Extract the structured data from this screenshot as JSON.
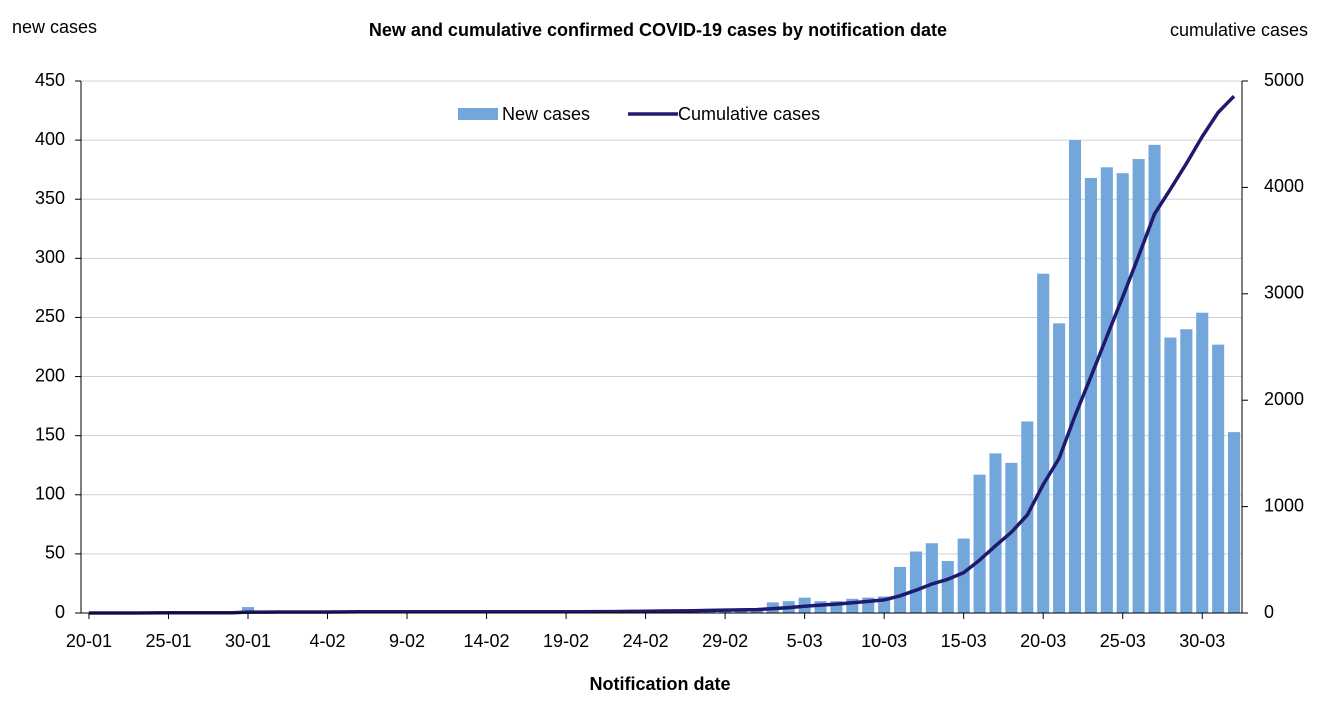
{
  "chart_data": {
    "type": "bar_line",
    "title": "New and cumulative confirmed COVID-19 cases by notification date",
    "y_label": "new cases",
    "y2_label": "cumulative cases",
    "x_label": "Notification date",
    "categories": [
      "20-01",
      null,
      null,
      null,
      null,
      "25-01",
      null,
      null,
      null,
      null,
      "30-01",
      null,
      null,
      null,
      null,
      "4-02",
      null,
      null,
      null,
      null,
      "9-02",
      null,
      null,
      null,
      null,
      "14-02",
      null,
      null,
      null,
      null,
      "19-02",
      null,
      null,
      null,
      null,
      "24-02",
      null,
      null,
      null,
      null,
      "29-02",
      null,
      null,
      null,
      null,
      "5-03",
      null,
      null,
      null,
      null,
      "10-03",
      null,
      null,
      null,
      null,
      "15-03",
      null,
      null,
      null,
      null,
      "20-03",
      null,
      null,
      null,
      null,
      "25-03",
      null,
      null,
      null,
      null,
      "30-03",
      null,
      null
    ],
    "series": [
      {
        "name": "New cases",
        "type": "bar",
        "color": "#73a6da",
        "values": [
          0,
          0,
          0,
          0,
          1,
          1,
          1,
          0,
          0,
          0,
          5,
          0,
          1,
          0,
          0,
          0,
          1,
          1,
          0,
          0,
          0,
          1,
          0,
          0,
          0,
          0,
          0,
          0,
          0,
          0,
          0,
          0,
          1,
          0,
          2,
          2,
          2,
          1,
          2,
          2,
          3,
          2,
          3,
          9,
          10,
          13,
          10,
          10,
          12,
          13,
          14,
          39,
          52,
          59,
          44,
          63,
          117,
          135,
          127,
          162,
          287,
          245,
          400,
          368,
          377,
          372,
          384,
          396,
          233,
          240,
          254,
          227,
          153
        ]
      },
      {
        "name": "Cumulative cases",
        "type": "line",
        "axis": "y2",
        "color": "#1f1a6e",
        "values": [
          0,
          0,
          0,
          0,
          1,
          2,
          3,
          3,
          3,
          3,
          8,
          8,
          9,
          9,
          9,
          9,
          10,
          11,
          11,
          11,
          11,
          12,
          12,
          12,
          12,
          12,
          12,
          12,
          12,
          12,
          12,
          12,
          13,
          13,
          15,
          17,
          19,
          20,
          22,
          24,
          27,
          29,
          32,
          41,
          51,
          64,
          74,
          84,
          96,
          109,
          123,
          162,
          214,
          273,
          317,
          380,
          497,
          632,
          759,
          921,
          1208,
          1453,
          1853,
          2221,
          2598,
          2970,
          3354,
          3750,
          3983,
          4223,
          4477,
          4704,
          4857
        ]
      }
    ],
    "ylim": [
      0,
      450
    ],
    "yticks": [
      0,
      50,
      100,
      150,
      200,
      250,
      300,
      350,
      400,
      450
    ],
    "y2lim": [
      0,
      5000
    ],
    "y2ticks": [
      0,
      1000,
      2000,
      3000,
      4000,
      5000
    ],
    "grid": true,
    "legend": "top"
  }
}
